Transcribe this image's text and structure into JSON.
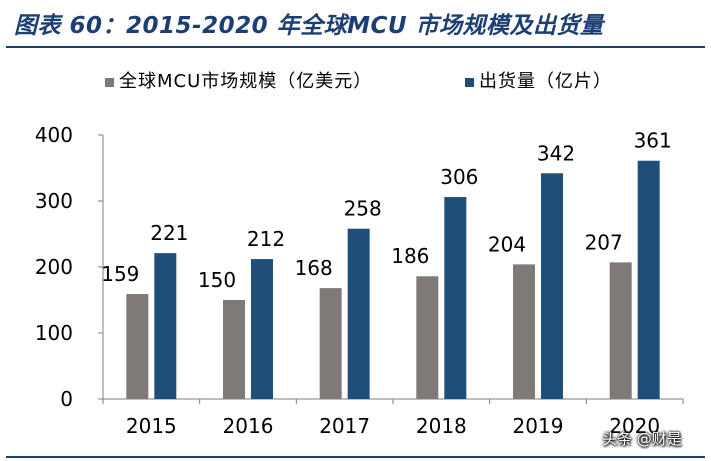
{
  "figure": {
    "title": "图表 60：2015-2020 年全球MCU 市场规模及出货量",
    "watermark": "头条 @财是"
  },
  "colors": {
    "title": "#1c3f73",
    "market": "#7f7a78",
    "shipments": "#1f4e79"
  },
  "chart_data": {
    "type": "bar",
    "categories": [
      "2015",
      "2016",
      "2017",
      "2018",
      "2019",
      "2020"
    ],
    "series": [
      {
        "name": "全球MCU市场规模（亿美元）",
        "values": [
          159,
          150,
          168,
          186,
          204,
          207
        ],
        "color": "#7f7a78"
      },
      {
        "name": "出货量（亿片）",
        "values": [
          221,
          212,
          258,
          306,
          342,
          361
        ],
        "color": "#1f4e79"
      }
    ],
    "ylim": [
      0,
      400
    ],
    "yticks": [
      0,
      100,
      200,
      300,
      400
    ],
    "grid": false,
    "legend": "top",
    "data_labels": true
  }
}
